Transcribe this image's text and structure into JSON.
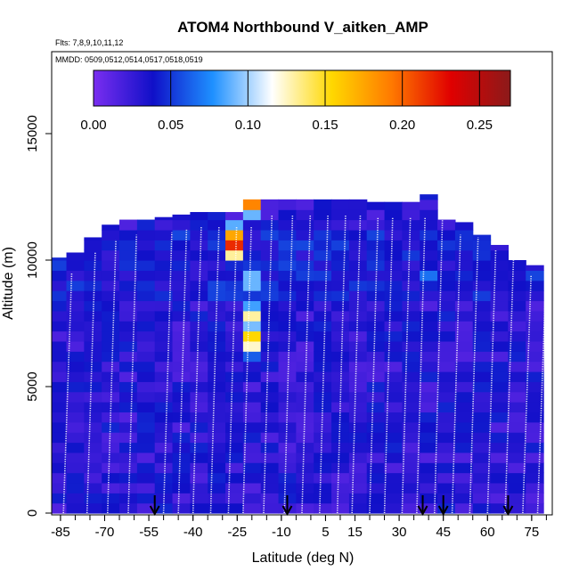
{
  "chart_data": {
    "type": "heatmap",
    "title": "ATOM4 Northbound V_aitken_AMP",
    "flights_label": "Flts: 7,8,9,10,11,12",
    "dates_label": "MMDD: 0509,0512,0514,0517,0518,0519",
    "xlabel": "Latitude (deg N)",
    "ylabel": "Altitude (m)",
    "x_ticks": [
      "-85",
      "-70",
      "-55",
      "-40",
      "-25",
      "-10",
      "5",
      "15",
      "30",
      "45",
      "60",
      "75"
    ],
    "y_ticks": [
      "0",
      "5000",
      "10000",
      "15000"
    ],
    "xlim": [
      -88,
      82
    ],
    "ylim": [
      0,
      15000
    ],
    "colorbar": {
      "ticks": [
        "0.00",
        "0.05",
        "0.10",
        "0.15",
        "0.20",
        "0.25"
      ],
      "range": [
        0,
        0.27
      ],
      "colors": [
        "#7a2ef0",
        "#1010c8",
        "#1e90ff",
        "#ffffff",
        "#ffd800",
        "#ff7a00",
        "#e00000",
        "#8b1a1a"
      ]
    },
    "column_tops_m": [
      [
        -86,
        10100
      ],
      [
        -80,
        10300
      ],
      [
        -74,
        10900
      ],
      [
        -68,
        11400
      ],
      [
        -62,
        11600
      ],
      [
        -56,
        11600
      ],
      [
        -50,
        11700
      ],
      [
        -44,
        11800
      ],
      [
        -38,
        11900
      ],
      [
        -32,
        11900
      ],
      [
        -26,
        11900
      ],
      [
        -20,
        12400
      ],
      [
        -14,
        12400
      ],
      [
        -8,
        12400
      ],
      [
        -2,
        12400
      ],
      [
        4,
        12400
      ],
      [
        10,
        12400
      ],
      [
        16,
        12400
      ],
      [
        22,
        12300
      ],
      [
        28,
        12300
      ],
      [
        34,
        12300
      ],
      [
        40,
        12600
      ],
      [
        46,
        11600
      ],
      [
        52,
        11500
      ],
      [
        58,
        11000
      ],
      [
        64,
        10600
      ],
      [
        70,
        10000
      ],
      [
        76,
        9800
      ]
    ],
    "hotspots": [
      {
        "lat": -22,
        "alt": 12000,
        "value": 0.27
      },
      {
        "lat": -26,
        "alt": 10500,
        "value": 0.24
      },
      {
        "lat": -18,
        "alt": 12200,
        "value": 0.2
      },
      {
        "lat": -20,
        "alt": 6700,
        "value": 0.17
      },
      {
        "lat": -20,
        "alt": 7600,
        "value": 0.13
      },
      {
        "lat": -20,
        "alt": 9000,
        "value": 0.11
      },
      {
        "lat": 39,
        "alt": 9200,
        "value": 0.08
      }
    ],
    "profile_arrows_lat": [
      -53,
      -8,
      38,
      45,
      67
    ]
  }
}
